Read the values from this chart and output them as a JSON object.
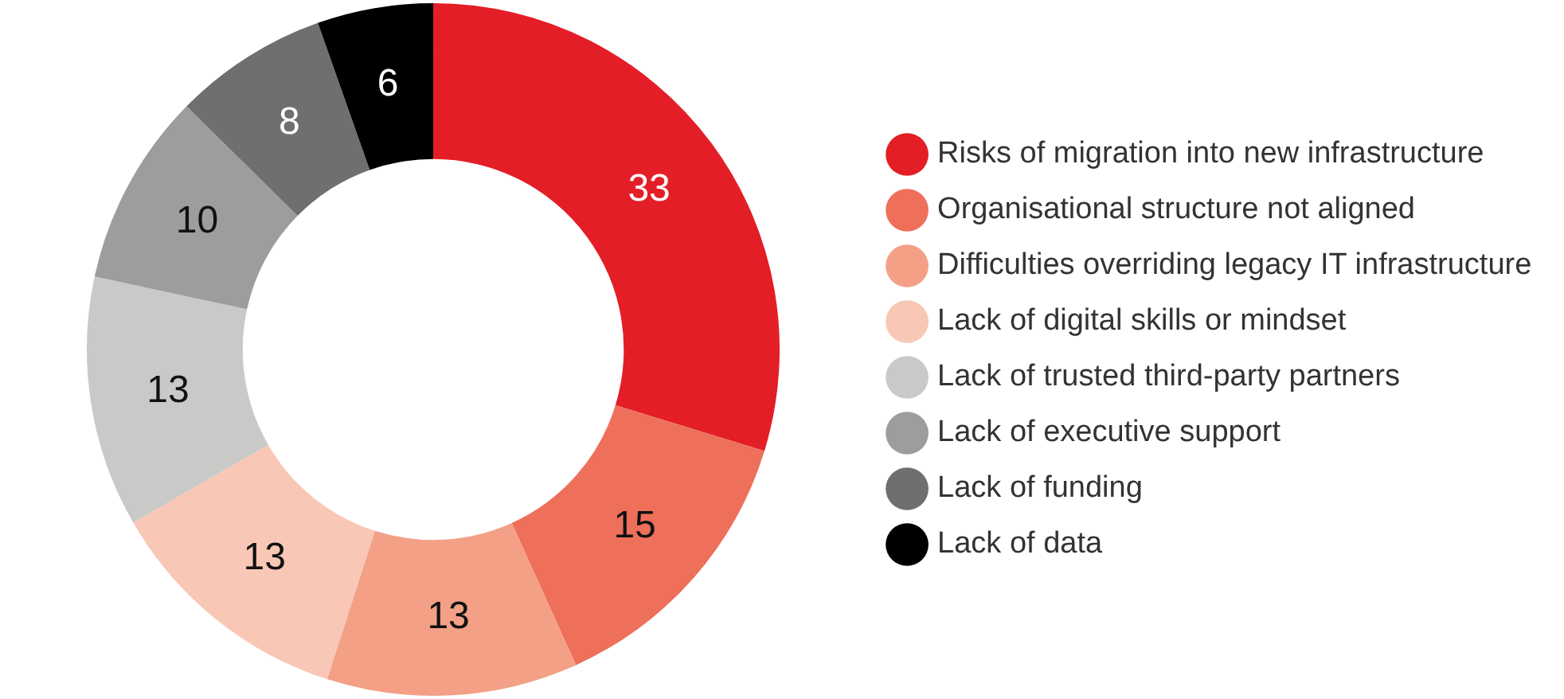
{
  "chart_data": {
    "type": "donut",
    "categories": [
      "Risks of migration into new infrastructure",
      "Organisational structure not aligned",
      "Difficulties overriding legacy IT infrastructure",
      "Lack of digital skills or mindset",
      "Lack of trusted third-party partners",
      "Lack of executive support",
      "Lack of funding",
      "Lack of data"
    ],
    "values": [
      33,
      15,
      13,
      13,
      13,
      10,
      8,
      6
    ],
    "colors": [
      "#e41e26",
      "#ee705a",
      "#f3a086",
      "#f8c7b5",
      "#c9c9c8",
      "#9d9d9c",
      "#6f6f6e",
      "#000000"
    ],
    "data_labels": true,
    "legend": "right"
  }
}
